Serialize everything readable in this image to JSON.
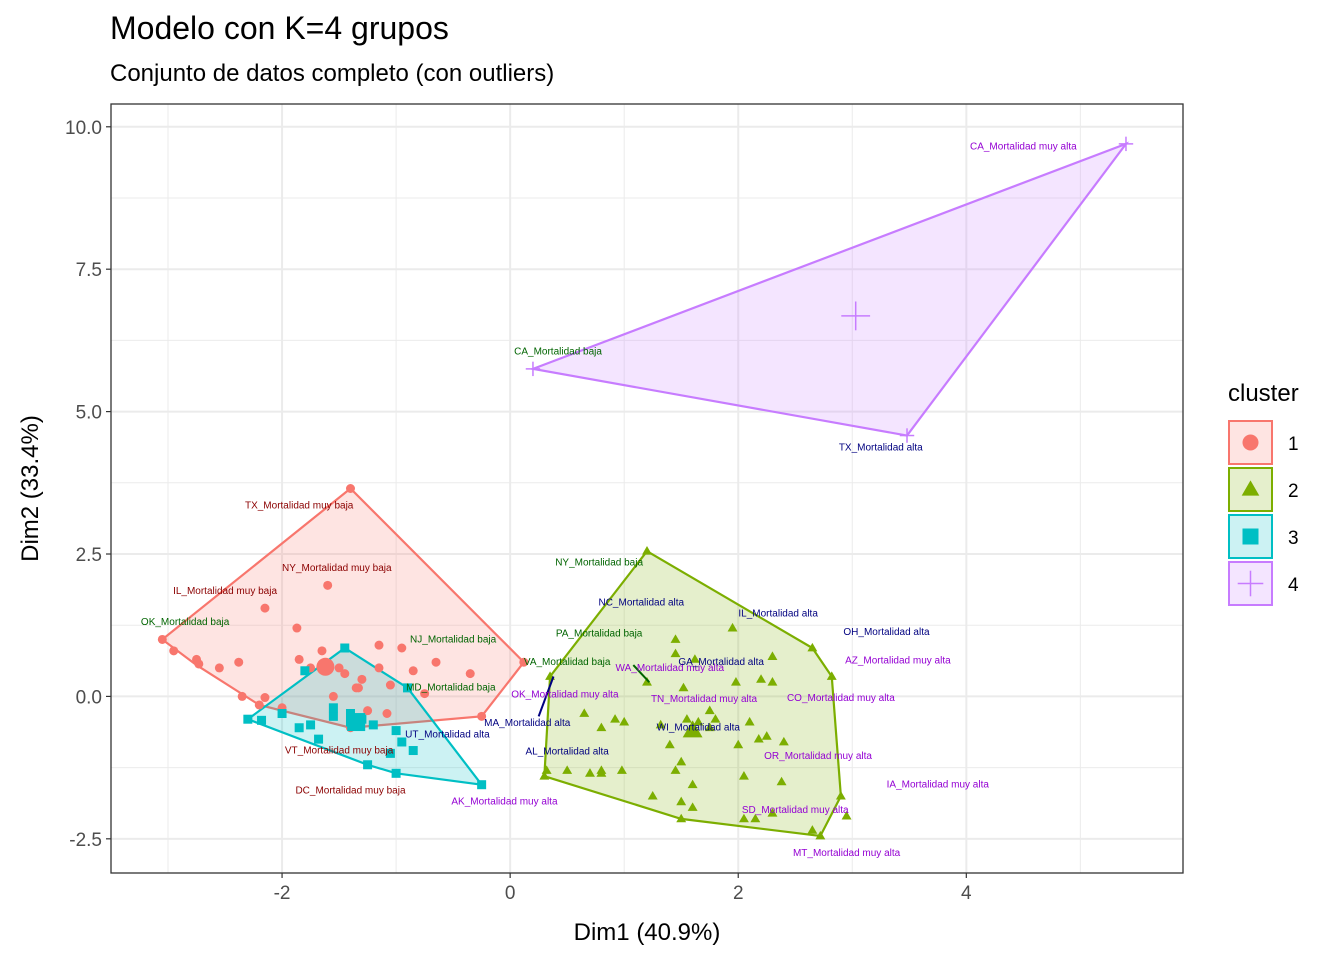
{
  "chart_data": {
    "type": "scatter",
    "title": "Modelo con K=4 grupos",
    "subtitle": "Conjunto de datos completo (con outliers)",
    "xlabel": "Dim1 (40.9%)",
    "ylabel": "Dim2 (33.4%)",
    "xlim": [
      -3.5,
      5.9
    ],
    "ylim": [
      -3.1,
      10.4
    ],
    "x_ticks": [
      -2,
      0,
      2,
      4
    ],
    "y_ticks": [
      -2.5,
      0.0,
      2.5,
      5.0,
      7.5,
      10.0
    ],
    "x_tick_labels": [
      "-2",
      "0",
      "2",
      "4"
    ],
    "y_tick_labels": [
      "-2.5",
      "0.0",
      "2.5",
      "5.0",
      "7.5",
      "10.0"
    ],
    "grid": true,
    "legend": {
      "title": "cluster",
      "position": "right",
      "entries": [
        {
          "name": "1",
          "color": "#F8766D",
          "shape": "circle"
        },
        {
          "name": "2",
          "color": "#7CAE00",
          "shape": "triangle"
        },
        {
          "name": "3",
          "color": "#00BFC4",
          "shape": "square"
        },
        {
          "name": "4",
          "color": "#C77CFF",
          "shape": "plus"
        }
      ]
    },
    "clusters": [
      {
        "name": "1",
        "color": "#F8766D",
        "shape": "circle",
        "hull": [
          [
            -3.05,
            1.0
          ],
          [
            -1.4,
            3.65
          ],
          [
            0.12,
            0.6
          ],
          [
            -0.25,
            -0.35
          ],
          [
            -1.4,
            -0.55
          ],
          [
            -2.2,
            -0.15
          ],
          [
            -2.75,
            0.55
          ]
        ],
        "center": [
          -1.62,
          0.52
        ],
        "points": [
          [
            -3.05,
            1.0
          ],
          [
            -2.95,
            0.8
          ],
          [
            -2.75,
            0.65
          ],
          [
            -2.73,
            0.57
          ],
          [
            -2.55,
            0.5
          ],
          [
            -2.38,
            0.6
          ],
          [
            -2.2,
            -0.15
          ],
          [
            -2.15,
            -0.02
          ],
          [
            -2.0,
            -0.2
          ],
          [
            -1.85,
            0.65
          ],
          [
            -1.87,
            1.2
          ],
          [
            -1.65,
            0.8
          ],
          [
            -1.6,
            1.95
          ],
          [
            -1.5,
            0.5
          ],
          [
            -1.45,
            0.4
          ],
          [
            -1.3,
            0.3
          ],
          [
            -1.35,
            0.15
          ],
          [
            -1.33,
            0.15
          ],
          [
            -1.55,
            0.0
          ],
          [
            -1.25,
            -0.25
          ],
          [
            -1.35,
            -0.45
          ],
          [
            -1.4,
            -0.55
          ],
          [
            -1.15,
            0.9
          ],
          [
            -1.08,
            -0.3
          ],
          [
            -0.95,
            0.85
          ],
          [
            -0.85,
            0.45
          ],
          [
            -0.75,
            0.05
          ],
          [
            -0.65,
            0.6
          ],
          [
            -0.35,
            0.4
          ],
          [
            -0.25,
            -0.35
          ],
          [
            0.12,
            0.6
          ],
          [
            -1.75,
            0.5
          ],
          [
            -2.15,
            1.55
          ],
          [
            -2.35,
            0.0
          ],
          [
            -1.15,
            0.5
          ],
          [
            -1.05,
            0.2
          ],
          [
            -1.4,
            3.65
          ]
        ]
      },
      {
        "name": "2",
        "color": "#7CAE00",
        "shape": "triangle",
        "hull": [
          [
            1.2,
            2.55
          ],
          [
            2.65,
            0.85
          ],
          [
            2.82,
            0.35
          ],
          [
            2.9,
            -1.75
          ],
          [
            2.72,
            -2.45
          ],
          [
            1.5,
            -2.15
          ],
          [
            0.3,
            -1.4
          ],
          [
            0.35,
            0.35
          ]
        ],
        "center": [
          1.6,
          -0.6
        ],
        "points": [
          [
            1.2,
            2.55
          ],
          [
            0.35,
            0.35
          ],
          [
            0.3,
            -1.4
          ],
          [
            0.32,
            -1.3
          ],
          [
            0.5,
            -1.3
          ],
          [
            0.65,
            -0.3
          ],
          [
            0.7,
            -1.35
          ],
          [
            0.8,
            -1.3
          ],
          [
            0.8,
            -0.55
          ],
          [
            0.8,
            -1.35
          ],
          [
            0.92,
            -0.4
          ],
          [
            0.98,
            -1.3
          ],
          [
            1.0,
            -0.45
          ],
          [
            1.2,
            0.25
          ],
          [
            1.25,
            -1.75
          ],
          [
            1.32,
            -0.5
          ],
          [
            1.4,
            -0.85
          ],
          [
            1.45,
            -1.3
          ],
          [
            1.45,
            0.75
          ],
          [
            1.45,
            1.0
          ],
          [
            1.5,
            -1.15
          ],
          [
            1.5,
            -1.85
          ],
          [
            1.5,
            -2.15
          ],
          [
            1.52,
            0.15
          ],
          [
            1.55,
            -0.4
          ],
          [
            1.6,
            -1.55
          ],
          [
            1.6,
            -1.95
          ],
          [
            1.62,
            0.65
          ],
          [
            1.65,
            -0.45
          ],
          [
            1.75,
            -0.25
          ],
          [
            1.75,
            -0.55
          ],
          [
            1.8,
            -0.4
          ],
          [
            1.95,
            1.2
          ],
          [
            1.98,
            0.25
          ],
          [
            2.0,
            -0.85
          ],
          [
            2.05,
            -1.4
          ],
          [
            2.05,
            -2.15
          ],
          [
            2.1,
            -0.45
          ],
          [
            2.15,
            -2.15
          ],
          [
            2.18,
            -0.75
          ],
          [
            2.2,
            0.3
          ],
          [
            2.25,
            -0.7
          ],
          [
            2.3,
            -2.05
          ],
          [
            2.3,
            0.25
          ],
          [
            2.3,
            0.7
          ],
          [
            2.38,
            -1.5
          ],
          [
            2.4,
            -0.8
          ],
          [
            2.65,
            0.85
          ],
          [
            2.65,
            -2.35
          ],
          [
            2.72,
            -2.45
          ],
          [
            2.82,
            0.35
          ],
          [
            2.9,
            -1.75
          ],
          [
            2.95,
            -2.1
          ]
        ]
      },
      {
        "name": "3",
        "color": "#00BFC4",
        "shape": "square",
        "hull": [
          [
            -2.3,
            -0.4
          ],
          [
            -1.45,
            0.85
          ],
          [
            -0.9,
            0.15
          ],
          [
            -0.25,
            -1.55
          ],
          [
            -1.0,
            -1.35
          ],
          [
            -1.25,
            -1.2
          ]
        ],
        "center": [
          -1.35,
          -0.45
        ],
        "points": [
          [
            -2.3,
            -0.4
          ],
          [
            -2.18,
            -0.42
          ],
          [
            -2.0,
            -0.3
          ],
          [
            -1.85,
            -0.55
          ],
          [
            -1.8,
            0.45
          ],
          [
            -1.75,
            -0.5
          ],
          [
            -1.68,
            -0.75
          ],
          [
            -1.55,
            -0.35
          ],
          [
            -1.55,
            -0.2
          ],
          [
            -1.45,
            0.85
          ],
          [
            -1.4,
            -0.3
          ],
          [
            -1.4,
            -0.45
          ],
          [
            -1.3,
            -0.4
          ],
          [
            -1.25,
            -1.2
          ],
          [
            -1.2,
            -0.5
          ],
          [
            -1.05,
            -1.0
          ],
          [
            -1.0,
            -0.6
          ],
          [
            -1.0,
            -1.35
          ],
          [
            -0.95,
            -0.8
          ],
          [
            -0.9,
            0.15
          ],
          [
            -0.85,
            -0.95
          ],
          [
            -0.25,
            -1.55
          ]
        ]
      },
      {
        "name": "4",
        "color": "#C77CFF",
        "shape": "plus",
        "hull": [
          [
            0.2,
            5.75
          ],
          [
            5.4,
            9.7
          ],
          [
            3.48,
            4.58
          ]
        ],
        "center": [
          3.03,
          6.68
        ],
        "points": [
          [
            0.2,
            5.75
          ],
          [
            5.4,
            9.7
          ],
          [
            3.48,
            4.58
          ]
        ]
      }
    ],
    "arrows": [
      {
        "from": [
          0.25,
          -0.35
        ],
        "to": [
          0.38,
          0.35
        ],
        "color": "#000080"
      },
      {
        "from": [
          1.08,
          0.55
        ],
        "to": [
          1.22,
          0.25
        ],
        "color": "#006400"
      }
    ],
    "annotations": [
      {
        "text": "CA_Mortalidad muy alta",
        "x": 4.5,
        "y": 9.6,
        "color": "#9400D3"
      },
      {
        "text": "CA_Mortalidad baja",
        "x": 0.42,
        "y": 6.0,
        "color": "#006400"
      },
      {
        "text": "TX_Mortalidad alta",
        "x": 3.25,
        "y": 4.32,
        "color": "#000080"
      },
      {
        "text": "TX_Mortalidad muy baja",
        "x": -1.85,
        "y": 3.3,
        "color": "#8B0000"
      },
      {
        "text": "NY_Mortalidad muy baja",
        "x": -1.52,
        "y": 2.2,
        "color": "#8B0000"
      },
      {
        "text": "IL_Mortalidad muy baja",
        "x": -2.5,
        "y": 1.8,
        "color": "#8B0000"
      },
      {
        "text": "OK_Mortalidad baja",
        "x": -2.85,
        "y": 1.25,
        "color": "#006400"
      },
      {
        "text": "NJ_Mortalidad baja",
        "x": -0.5,
        "y": 0.95,
        "color": "#006400"
      },
      {
        "text": "MD_Mortalidad baja",
        "x": -0.52,
        "y": 0.1,
        "color": "#006400"
      },
      {
        "text": "VT_Mortalidad muy baja",
        "x": -1.5,
        "y": -1.0,
        "color": "#8B0000"
      },
      {
        "text": "DC_Mortalidad muy baja",
        "x": -1.4,
        "y": -1.7,
        "color": "#8B0000"
      },
      {
        "text": "UT_Mortalidad alta",
        "x": -0.55,
        "y": -0.72,
        "color": "#000080"
      },
      {
        "text": "AK_Mortalidad muy alta",
        "x": -0.05,
        "y": -1.9,
        "color": "#9400D3"
      },
      {
        "text": "NY_Mortalidad baja",
        "x": 0.78,
        "y": 2.3,
        "color": "#006400"
      },
      {
        "text": "NC_Mortalidad alta",
        "x": 1.15,
        "y": 1.6,
        "color": "#000080"
      },
      {
        "text": "IL_Mortalidad alta",
        "x": 2.35,
        "y": 1.4,
        "color": "#000080"
      },
      {
        "text": "PA_Mortalidad baja",
        "x": 0.78,
        "y": 1.05,
        "color": "#006400"
      },
      {
        "text": "OH_Mortalidad alta",
        "x": 3.3,
        "y": 1.08,
        "color": "#000080"
      },
      {
        "text": "VA_Mortalidad baja",
        "x": 0.5,
        "y": 0.55,
        "color": "#006400"
      },
      {
        "text": "WA_Mortalidad muy alta",
        "x": 1.4,
        "y": 0.45,
        "color": "#9400D3"
      },
      {
        "text": "GA_Mortalidad alta",
        "x": 1.85,
        "y": 0.55,
        "color": "#000080"
      },
      {
        "text": "AZ_Mortalidad muy alta",
        "x": 3.4,
        "y": 0.58,
        "color": "#9400D3"
      },
      {
        "text": "OK_Mortalidad muy alta",
        "x": 0.48,
        "y": -0.02,
        "color": "#9400D3"
      },
      {
        "text": "TN_Mortalidad muy alta",
        "x": 1.7,
        "y": -0.1,
        "color": "#9400D3"
      },
      {
        "text": "CO_Mortalidad muy alta",
        "x": 2.9,
        "y": -0.08,
        "color": "#9400D3"
      },
      {
        "text": "MA_Mortalidad alta",
        "x": 0.15,
        "y": -0.52,
        "color": "#000080"
      },
      {
        "text": "WI_Mortalidad alta",
        "x": 1.65,
        "y": -0.6,
        "color": "#000080"
      },
      {
        "text": "AL_Mortalidad alta",
        "x": 0.5,
        "y": -1.02,
        "color": "#000080"
      },
      {
        "text": "OR_Mortalidad muy alta",
        "x": 2.7,
        "y": -1.1,
        "color": "#9400D3"
      },
      {
        "text": "IA_Mortalidad muy alta",
        "x": 3.75,
        "y": -1.6,
        "color": "#9400D3"
      },
      {
        "text": "SD_Mortalidad muy alta",
        "x": 2.5,
        "y": -2.05,
        "color": "#9400D3"
      },
      {
        "text": "MT_Mortalidad muy alta",
        "x": 2.95,
        "y": -2.8,
        "color": "#9400D3"
      }
    ]
  }
}
